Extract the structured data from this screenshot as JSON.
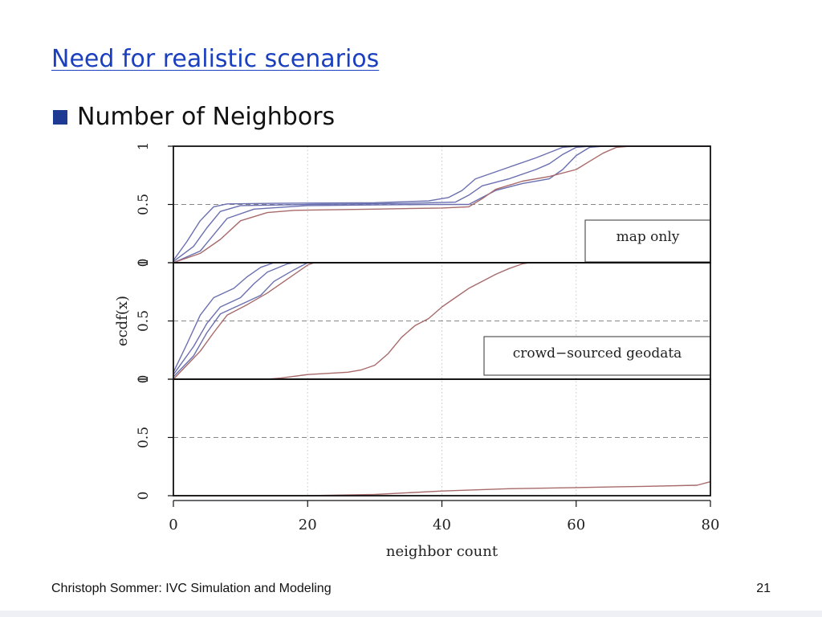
{
  "slide": {
    "title": "Need for realistic scenarios",
    "bullet": "Number of Neighbors",
    "footer_left": "Christoph Sommer: IVC Simulation and Modeling",
    "page_number": "21"
  },
  "colors": {
    "title": "#1a3fbf",
    "bullet": "#1f3a93",
    "blue_series": "#6a6fb0",
    "red_series": "#a86a6a"
  },
  "chart_data": {
    "type": "line",
    "xlabel": "neighbor count",
    "ylabel": "ecdf(x)",
    "xlim": [
      0,
      80
    ],
    "x_ticks": [
      "0",
      "20",
      "40",
      "60",
      "80"
    ],
    "y_ticks": [
      "0",
      "0.5",
      "1"
    ],
    "vertical_grid": [
      20,
      40,
      60
    ],
    "horizontal_reference": 0.5,
    "panels": [
      {
        "label": "map only",
        "series": [
          {
            "color": "blue",
            "points": [
              [
                0,
                0.02
              ],
              [
                2,
                0.18
              ],
              [
                4,
                0.36
              ],
              [
                6,
                0.48
              ],
              [
                8,
                0.505
              ],
              [
                15,
                0.51
              ],
              [
                30,
                0.515
              ],
              [
                38,
                0.53
              ],
              [
                41,
                0.56
              ],
              [
                43,
                0.62
              ],
              [
                45,
                0.72
              ],
              [
                50,
                0.82
              ],
              [
                54,
                0.9
              ],
              [
                58,
                0.99
              ],
              [
                60,
                1.0
              ],
              [
                80,
                1.0
              ]
            ]
          },
          {
            "color": "blue",
            "points": [
              [
                0,
                0.01
              ],
              [
                3,
                0.14
              ],
              [
                5,
                0.3
              ],
              [
                7,
                0.44
              ],
              [
                10,
                0.49
              ],
              [
                20,
                0.5
              ],
              [
                35,
                0.51
              ],
              [
                42,
                0.52
              ],
              [
                44,
                0.58
              ],
              [
                46,
                0.66
              ],
              [
                50,
                0.72
              ],
              [
                54,
                0.8
              ],
              [
                56,
                0.85
              ],
              [
                58,
                0.93
              ],
              [
                60,
                0.99
              ],
              [
                62,
                1.0
              ],
              [
                80,
                1.0
              ]
            ]
          },
          {
            "color": "blue",
            "points": [
              [
                0,
                0.0
              ],
              [
                4,
                0.1
              ],
              [
                6,
                0.24
              ],
              [
                8,
                0.38
              ],
              [
                12,
                0.46
              ],
              [
                20,
                0.49
              ],
              [
                38,
                0.5
              ],
              [
                44,
                0.5
              ],
              [
                46,
                0.56
              ],
              [
                48,
                0.62
              ],
              [
                52,
                0.68
              ],
              [
                56,
                0.72
              ],
              [
                58,
                0.8
              ],
              [
                60,
                0.92
              ],
              [
                62,
                0.99
              ],
              [
                64,
                1.0
              ],
              [
                80,
                1.0
              ]
            ]
          },
          {
            "color": "red",
            "points": [
              [
                0,
                0.0
              ],
              [
                4,
                0.08
              ],
              [
                7,
                0.2
              ],
              [
                10,
                0.36
              ],
              [
                14,
                0.43
              ],
              [
                18,
                0.45
              ],
              [
                30,
                0.46
              ],
              [
                40,
                0.47
              ],
              [
                44,
                0.48
              ],
              [
                46,
                0.55
              ],
              [
                48,
                0.63
              ],
              [
                52,
                0.7
              ],
              [
                56,
                0.74
              ],
              [
                60,
                0.8
              ],
              [
                62,
                0.87
              ],
              [
                64,
                0.94
              ],
              [
                66,
                0.99
              ],
              [
                68,
                1.0
              ],
              [
                80,
                1.0
              ]
            ]
          }
        ]
      },
      {
        "label": "crowd−sourced geodata",
        "series": [
          {
            "color": "blue",
            "points": [
              [
                0,
                0.06
              ],
              [
                2,
                0.3
              ],
              [
                4,
                0.55
              ],
              [
                6,
                0.7
              ],
              [
                9,
                0.78
              ],
              [
                11,
                0.88
              ],
              [
                13,
                0.96
              ],
              [
                15,
                1.0
              ],
              [
                80,
                1.0
              ]
            ]
          },
          {
            "color": "blue",
            "points": [
              [
                0,
                0.04
              ],
              [
                3,
                0.28
              ],
              [
                5,
                0.48
              ],
              [
                7,
                0.62
              ],
              [
                10,
                0.7
              ],
              [
                12,
                0.82
              ],
              [
                14,
                0.92
              ],
              [
                17,
                0.99
              ],
              [
                18,
                1.0
              ],
              [
                80,
                1.0
              ]
            ]
          },
          {
            "color": "blue",
            "points": [
              [
                0,
                0.02
              ],
              [
                3,
                0.2
              ],
              [
                5,
                0.4
              ],
              [
                7,
                0.56
              ],
              [
                10,
                0.64
              ],
              [
                13,
                0.72
              ],
              [
                15,
                0.84
              ],
              [
                18,
                0.94
              ],
              [
                20,
                1.0
              ],
              [
                80,
                1.0
              ]
            ]
          },
          {
            "color": "red",
            "points": [
              [
                0,
                0.0
              ],
              [
                2,
                0.12
              ],
              [
                4,
                0.24
              ],
              [
                6,
                0.4
              ],
              [
                8,
                0.55
              ],
              [
                11,
                0.64
              ],
              [
                14,
                0.74
              ],
              [
                17,
                0.86
              ],
              [
                20,
                0.98
              ],
              [
                21,
                1.0
              ],
              [
                80,
                1.0
              ]
            ]
          },
          {
            "color": "red",
            "points": [
              [
                0,
                0.0
              ],
              [
                14,
                0.0
              ],
              [
                16,
                0.01
              ],
              [
                20,
                0.04
              ],
              [
                26,
                0.06
              ],
              [
                28,
                0.08
              ],
              [
                30,
                0.12
              ],
              [
                32,
                0.22
              ],
              [
                34,
                0.36
              ],
              [
                36,
                0.46
              ],
              [
                38,
                0.52
              ],
              [
                40,
                0.62
              ],
              [
                42,
                0.7
              ],
              [
                44,
                0.78
              ],
              [
                46,
                0.84
              ],
              [
                48,
                0.9
              ],
              [
                50,
                0.95
              ],
              [
                52,
                0.99
              ],
              [
                53,
                1.0
              ],
              [
                80,
                1.0
              ]
            ]
          }
        ]
      },
      {
        "label": "",
        "series": [
          {
            "color": "red",
            "points": [
              [
                0,
                0.0
              ],
              [
                20,
                0.0
              ],
              [
                30,
                0.01
              ],
              [
                40,
                0.04
              ],
              [
                50,
                0.06
              ],
              [
                60,
                0.07
              ],
              [
                70,
                0.08
              ],
              [
                78,
                0.09
              ],
              [
                80,
                0.12
              ]
            ]
          }
        ]
      }
    ]
  }
}
